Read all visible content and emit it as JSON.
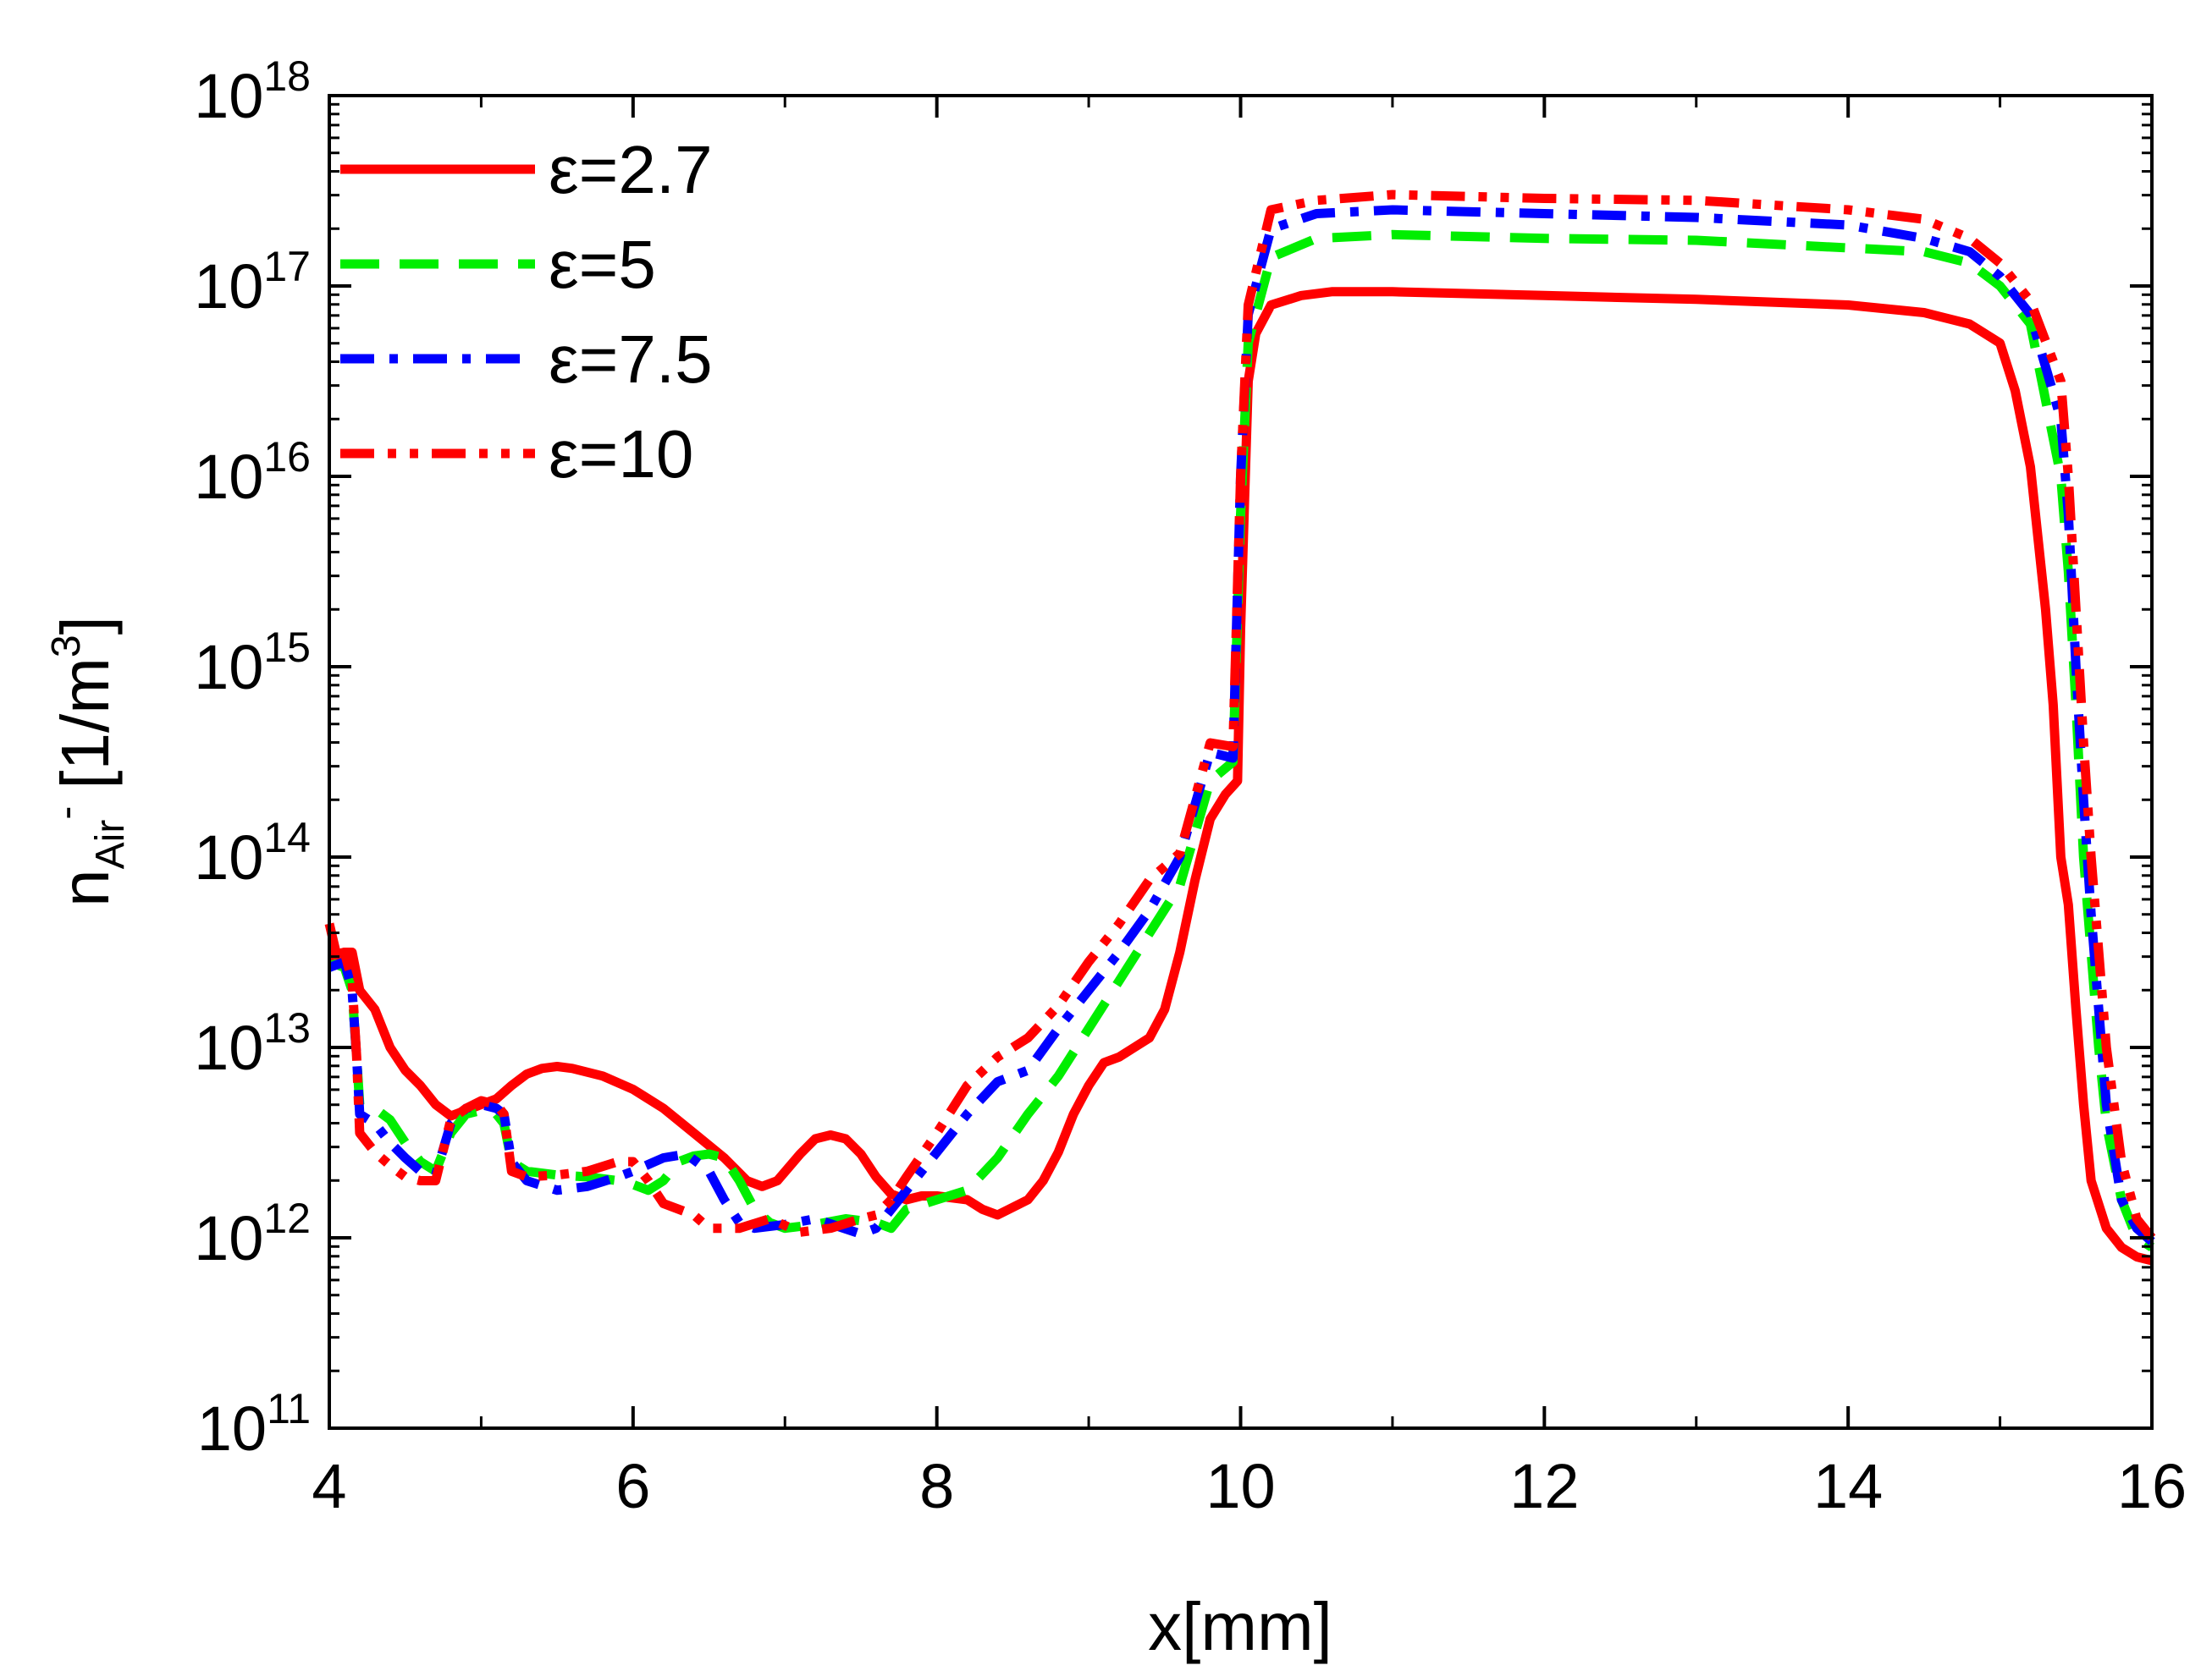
{
  "chart_data": {
    "type": "line",
    "title": "",
    "xlabel": "x[mm]",
    "ylabel": {
      "base": "n",
      "subscript": "Air",
      "superscript_small": "-",
      "unit_prefix": "[1/m",
      "unit_power": "3",
      "unit_suffix": "]"
    },
    "xlim": [
      4,
      16
    ],
    "ylim_log10": [
      11,
      18
    ],
    "y_scale": "log",
    "x_ticks": [
      "4",
      "6",
      "8",
      "10",
      "12",
      "14",
      "16"
    ],
    "y_ticks": [
      {
        "base": "10",
        "exp": "11"
      },
      {
        "base": "10",
        "exp": "12"
      },
      {
        "base": "10",
        "exp": "13"
      },
      {
        "base": "10",
        "exp": "14"
      },
      {
        "base": "10",
        "exp": "15"
      },
      {
        "base": "10",
        "exp": "16"
      },
      {
        "base": "10",
        "exp": "17"
      },
      {
        "base": "10",
        "exp": "18"
      }
    ],
    "legend_position": "top-left",
    "series": [
      {
        "name": "ε=2.7",
        "color": "#ff0000",
        "dash": "solid",
        "points": [
          [
            4.0,
            13.65
          ],
          [
            4.05,
            13.48
          ],
          [
            4.1,
            13.5
          ],
          [
            4.15,
            13.5
          ],
          [
            4.2,
            13.3
          ],
          [
            4.3,
            13.2
          ],
          [
            4.4,
            13.0
          ],
          [
            4.5,
            12.88
          ],
          [
            4.6,
            12.8
          ],
          [
            4.7,
            12.7
          ],
          [
            4.8,
            12.64
          ],
          [
            4.9,
            12.67
          ],
          [
            5.0,
            12.7
          ],
          [
            5.1,
            12.73
          ],
          [
            5.2,
            12.8
          ],
          [
            5.3,
            12.86
          ],
          [
            5.4,
            12.89
          ],
          [
            5.5,
            12.9
          ],
          [
            5.6,
            12.89
          ],
          [
            5.8,
            12.85
          ],
          [
            6.0,
            12.78
          ],
          [
            6.2,
            12.68
          ],
          [
            6.4,
            12.55
          ],
          [
            6.6,
            12.42
          ],
          [
            6.75,
            12.3
          ],
          [
            6.85,
            12.27
          ],
          [
            6.95,
            12.3
          ],
          [
            7.1,
            12.44
          ],
          [
            7.2,
            12.52
          ],
          [
            7.3,
            12.54
          ],
          [
            7.4,
            12.52
          ],
          [
            7.5,
            12.44
          ],
          [
            7.6,
            12.32
          ],
          [
            7.7,
            12.23
          ],
          [
            7.8,
            12.2
          ],
          [
            7.9,
            12.22
          ],
          [
            8.0,
            12.22
          ],
          [
            8.2,
            12.2
          ],
          [
            8.3,
            12.15
          ],
          [
            8.4,
            12.12
          ],
          [
            8.5,
            12.16
          ],
          [
            8.6,
            12.2
          ],
          [
            8.7,
            12.3
          ],
          [
            8.8,
            12.45
          ],
          [
            8.9,
            12.65
          ],
          [
            9.0,
            12.8
          ],
          [
            9.1,
            12.92
          ],
          [
            9.2,
            12.95
          ],
          [
            9.3,
            13.0
          ],
          [
            9.4,
            13.05
          ],
          [
            9.5,
            13.2
          ],
          [
            9.6,
            13.5
          ],
          [
            9.7,
            13.88
          ],
          [
            9.8,
            14.2
          ],
          [
            9.9,
            14.33
          ],
          [
            9.98,
            14.4
          ],
          [
            10.0,
            15.2
          ],
          [
            10.05,
            16.5
          ],
          [
            10.1,
            16.75
          ],
          [
            10.2,
            16.9
          ],
          [
            10.4,
            16.95
          ],
          [
            10.6,
            16.97
          ],
          [
            11.0,
            16.97
          ],
          [
            12.0,
            16.95
          ],
          [
            13.0,
            16.93
          ],
          [
            14.0,
            16.9
          ],
          [
            14.5,
            16.86
          ],
          [
            14.8,
            16.8
          ],
          [
            15.0,
            16.7
          ],
          [
            15.1,
            16.45
          ],
          [
            15.2,
            16.05
          ],
          [
            15.3,
            15.3
          ],
          [
            15.35,
            14.8
          ],
          [
            15.4,
            14.0
          ],
          [
            15.45,
            13.75
          ],
          [
            15.5,
            13.2
          ],
          [
            15.55,
            12.7
          ],
          [
            15.6,
            12.3
          ],
          [
            15.7,
            12.05
          ],
          [
            15.8,
            11.95
          ],
          [
            15.9,
            11.9
          ],
          [
            16.0,
            11.88
          ]
        ]
      },
      {
        "name": "ε=5",
        "color": "#00ee00",
        "dash": "dashed",
        "points": [
          [
            4.0,
            13.45
          ],
          [
            4.1,
            13.42
          ],
          [
            4.15,
            13.3
          ],
          [
            4.18,
            12.95
          ],
          [
            4.2,
            12.7
          ],
          [
            4.3,
            12.68
          ],
          [
            4.4,
            12.62
          ],
          [
            4.5,
            12.5
          ],
          [
            4.6,
            12.4
          ],
          [
            4.7,
            12.35
          ],
          [
            4.8,
            12.55
          ],
          [
            4.9,
            12.65
          ],
          [
            5.0,
            12.67
          ],
          [
            5.1,
            12.65
          ],
          [
            5.15,
            12.6
          ],
          [
            5.2,
            12.4
          ],
          [
            5.3,
            12.35
          ],
          [
            5.5,
            12.33
          ],
          [
            5.7,
            12.32
          ],
          [
            5.9,
            12.3
          ],
          [
            6.0,
            12.28
          ],
          [
            6.1,
            12.25
          ],
          [
            6.2,
            12.3
          ],
          [
            6.3,
            12.4
          ],
          [
            6.4,
            12.43
          ],
          [
            6.5,
            12.44
          ],
          [
            6.6,
            12.42
          ],
          [
            6.7,
            12.3
          ],
          [
            6.8,
            12.15
          ],
          [
            6.9,
            12.08
          ],
          [
            7.0,
            12.05
          ],
          [
            7.2,
            12.07
          ],
          [
            7.4,
            12.1
          ],
          [
            7.6,
            12.08
          ],
          [
            7.7,
            12.05
          ],
          [
            7.8,
            12.15
          ],
          [
            8.0,
            12.2
          ],
          [
            8.2,
            12.25
          ],
          [
            8.4,
            12.42
          ],
          [
            8.6,
            12.65
          ],
          [
            8.8,
            12.85
          ],
          [
            9.0,
            13.1
          ],
          [
            9.2,
            13.35
          ],
          [
            9.4,
            13.6
          ],
          [
            9.6,
            13.85
          ],
          [
            9.8,
            14.4
          ],
          [
            9.95,
            14.5
          ],
          [
            10.0,
            15.8
          ],
          [
            10.05,
            16.7
          ],
          [
            10.2,
            17.15
          ],
          [
            10.5,
            17.25
          ],
          [
            11.0,
            17.27
          ],
          [
            12.0,
            17.25
          ],
          [
            13.0,
            17.24
          ],
          [
            14.0,
            17.2
          ],
          [
            14.5,
            17.18
          ],
          [
            14.8,
            17.12
          ],
          [
            15.0,
            17.0
          ],
          [
            15.2,
            16.8
          ],
          [
            15.4,
            16.0
          ],
          [
            15.45,
            15.5
          ],
          [
            15.5,
            14.8
          ],
          [
            15.55,
            14.0
          ],
          [
            15.6,
            13.5
          ],
          [
            15.65,
            13.0
          ],
          [
            15.7,
            12.6
          ],
          [
            15.8,
            12.2
          ],
          [
            15.9,
            12.0
          ],
          [
            16.0,
            11.95
          ]
        ]
      },
      {
        "name": "ε=7.5",
        "color": "#0000ff",
        "dash": "dashdot",
        "points": [
          [
            4.0,
            13.42
          ],
          [
            4.1,
            13.45
          ],
          [
            4.15,
            13.3
          ],
          [
            4.18,
            12.95
          ],
          [
            4.2,
            12.65
          ],
          [
            4.3,
            12.6
          ],
          [
            4.4,
            12.5
          ],
          [
            4.5,
            12.42
          ],
          [
            4.6,
            12.35
          ],
          [
            4.7,
            12.33
          ],
          [
            4.8,
            12.6
          ],
          [
            4.9,
            12.68
          ],
          [
            5.0,
            12.7
          ],
          [
            5.1,
            12.68
          ],
          [
            5.15,
            12.65
          ],
          [
            5.2,
            12.4
          ],
          [
            5.3,
            12.3
          ],
          [
            5.5,
            12.25
          ],
          [
            5.7,
            12.27
          ],
          [
            5.9,
            12.32
          ],
          [
            6.0,
            12.35
          ],
          [
            6.2,
            12.42
          ],
          [
            6.35,
            12.44
          ],
          [
            6.5,
            12.35
          ],
          [
            6.6,
            12.2
          ],
          [
            6.7,
            12.08
          ],
          [
            6.8,
            12.05
          ],
          [
            7.0,
            12.07
          ],
          [
            7.2,
            12.1
          ],
          [
            7.5,
            12.02
          ],
          [
            7.6,
            12.05
          ],
          [
            7.7,
            12.15
          ],
          [
            7.8,
            12.25
          ],
          [
            8.0,
            12.45
          ],
          [
            8.2,
            12.65
          ],
          [
            8.4,
            12.82
          ],
          [
            8.6,
            12.88
          ],
          [
            8.8,
            13.1
          ],
          [
            9.0,
            13.3
          ],
          [
            9.2,
            13.5
          ],
          [
            9.4,
            13.72
          ],
          [
            9.6,
            14.0
          ],
          [
            9.8,
            14.55
          ],
          [
            9.95,
            14.52
          ],
          [
            10.0,
            16.0
          ],
          [
            10.05,
            16.85
          ],
          [
            10.2,
            17.3
          ],
          [
            10.5,
            17.38
          ],
          [
            11.0,
            17.4
          ],
          [
            12.0,
            17.38
          ],
          [
            13.0,
            17.36
          ],
          [
            14.0,
            17.32
          ],
          [
            14.5,
            17.25
          ],
          [
            14.8,
            17.18
          ],
          [
            15.0,
            17.05
          ],
          [
            15.2,
            16.85
          ],
          [
            15.4,
            16.3
          ],
          [
            15.45,
            15.8
          ],
          [
            15.5,
            15.0
          ],
          [
            15.55,
            14.3
          ],
          [
            15.6,
            13.7
          ],
          [
            15.65,
            13.2
          ],
          [
            15.7,
            12.7
          ],
          [
            15.8,
            12.2
          ],
          [
            15.9,
            12.05
          ],
          [
            16.0,
            11.98
          ]
        ]
      },
      {
        "name": "ε=10",
        "color": "#ff0000",
        "dash": "dashdotdot",
        "points": [
          [
            4.0,
            13.48
          ],
          [
            4.1,
            13.5
          ],
          [
            4.15,
            13.35
          ],
          [
            4.18,
            12.95
          ],
          [
            4.2,
            12.55
          ],
          [
            4.3,
            12.45
          ],
          [
            4.4,
            12.38
          ],
          [
            4.5,
            12.32
          ],
          [
            4.6,
            12.3
          ],
          [
            4.7,
            12.3
          ],
          [
            4.8,
            12.62
          ],
          [
            4.9,
            12.68
          ],
          [
            5.0,
            12.72
          ],
          [
            5.1,
            12.7
          ],
          [
            5.15,
            12.65
          ],
          [
            5.2,
            12.35
          ],
          [
            5.3,
            12.32
          ],
          [
            5.5,
            12.33
          ],
          [
            5.7,
            12.35
          ],
          [
            5.9,
            12.4
          ],
          [
            6.0,
            12.4
          ],
          [
            6.1,
            12.3
          ],
          [
            6.2,
            12.18
          ],
          [
            6.4,
            12.12
          ],
          [
            6.5,
            12.05
          ],
          [
            6.7,
            12.05
          ],
          [
            6.9,
            12.1
          ],
          [
            7.1,
            12.03
          ],
          [
            7.3,
            12.05
          ],
          [
            7.5,
            12.1
          ],
          [
            7.6,
            12.12
          ],
          [
            7.7,
            12.2
          ],
          [
            7.8,
            12.32
          ],
          [
            8.0,
            12.55
          ],
          [
            8.2,
            12.8
          ],
          [
            8.4,
            12.95
          ],
          [
            8.6,
            13.05
          ],
          [
            8.8,
            13.22
          ],
          [
            9.0,
            13.45
          ],
          [
            9.2,
            13.65
          ],
          [
            9.4,
            13.88
          ],
          [
            9.6,
            14.02
          ],
          [
            9.8,
            14.6
          ],
          [
            9.95,
            14.58
          ],
          [
            10.0,
            16.0
          ],
          [
            10.05,
            16.9
          ],
          [
            10.2,
            17.4
          ],
          [
            10.5,
            17.45
          ],
          [
            11.0,
            17.48
          ],
          [
            12.0,
            17.46
          ],
          [
            13.0,
            17.45
          ],
          [
            14.0,
            17.4
          ],
          [
            14.5,
            17.35
          ],
          [
            14.8,
            17.25
          ],
          [
            15.0,
            17.12
          ],
          [
            15.2,
            16.92
          ],
          [
            15.4,
            16.5
          ],
          [
            15.45,
            16.0
          ],
          [
            15.5,
            15.3
          ],
          [
            15.55,
            14.6
          ],
          [
            15.6,
            14.0
          ],
          [
            15.65,
            13.5
          ],
          [
            15.7,
            13.0
          ],
          [
            15.8,
            12.4
          ],
          [
            15.9,
            12.1
          ],
          [
            16.0,
            12.0
          ]
        ]
      }
    ]
  }
}
